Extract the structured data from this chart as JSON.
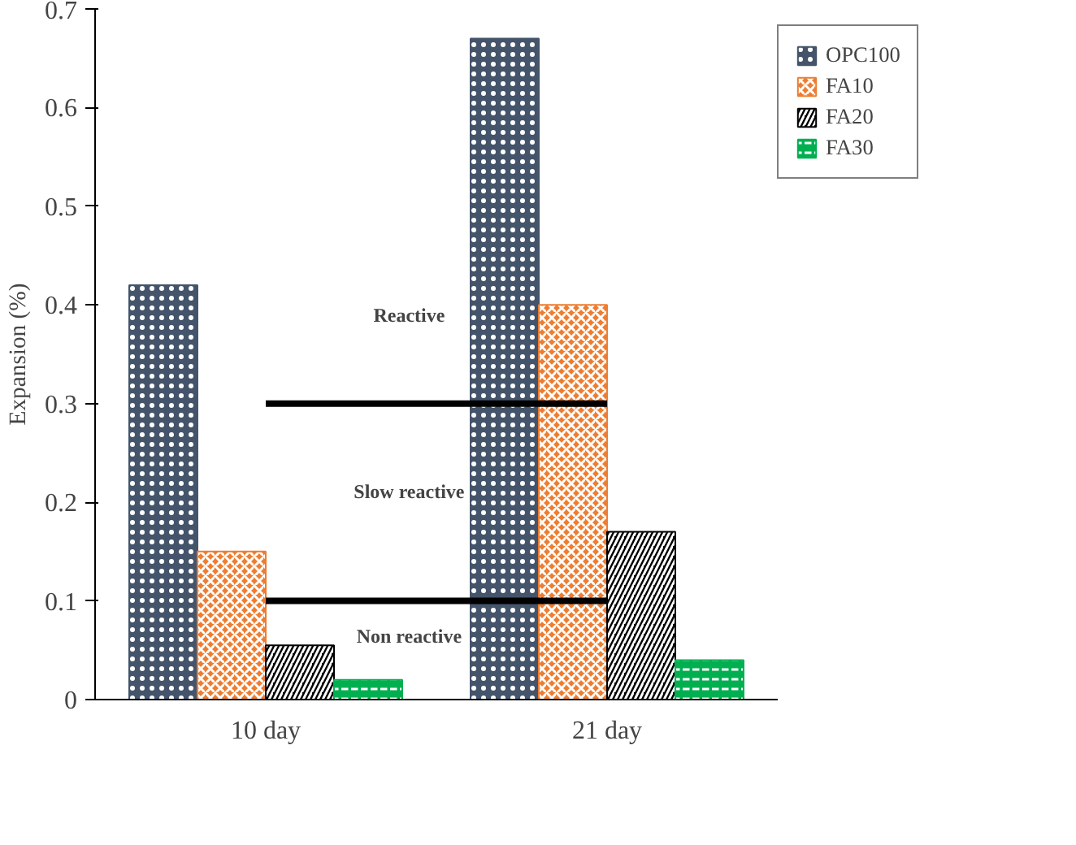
{
  "chart_data": {
    "type": "bar",
    "ylabel": "Expansion (%)",
    "categories": [
      "10 day",
      "21 day"
    ],
    "series": [
      {
        "name": "OPC100",
        "color": "#44546a",
        "values": [
          0.42,
          0.67
        ]
      },
      {
        "name": "FA10",
        "color": "#ed7d31",
        "values": [
          0.15,
          0.4
        ]
      },
      {
        "name": "FA20",
        "color": "#000000",
        "values": [
          0.055,
          0.17
        ]
      },
      {
        "name": "FA30",
        "color": "#00b050",
        "values": [
          0.02,
          0.04
        ]
      }
    ],
    "ylim": [
      0,
      0.7
    ],
    "yticks": [
      0,
      0.1,
      0.2,
      0.3,
      0.4,
      0.5,
      0.6,
      0.7
    ],
    "ref_lines": [
      {
        "axis": "y",
        "value": 0.3,
        "color": "#000000"
      },
      {
        "axis": "y",
        "value": 0.1,
        "color": "#000000"
      }
    ],
    "annotations": [
      "Reactive",
      "Slow reactive",
      "Non reactive"
    ],
    "grid": false,
    "legend": "top right"
  }
}
